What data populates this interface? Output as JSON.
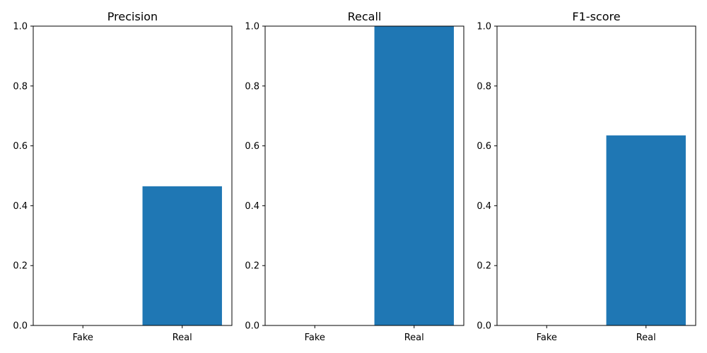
{
  "chart_data": [
    {
      "type": "bar",
      "title": "Precision",
      "categories": [
        "Fake",
        "Real"
      ],
      "values": [
        0.0,
        0.465
      ],
      "ylim": [
        0,
        1
      ],
      "yticks": [
        "0.0",
        "0.2",
        "0.4",
        "0.6",
        "0.8",
        "1.0"
      ],
      "grid": false,
      "color": "#1f77b4"
    },
    {
      "type": "bar",
      "title": "Recall",
      "categories": [
        "Fake",
        "Real"
      ],
      "values": [
        0.0,
        1.0
      ],
      "ylim": [
        0,
        1
      ],
      "yticks": [
        "0.0",
        "0.2",
        "0.4",
        "0.6",
        "0.8",
        "1.0"
      ],
      "grid": false,
      "color": "#1f77b4"
    },
    {
      "type": "bar",
      "title": "F1-score",
      "categories": [
        "Fake",
        "Real"
      ],
      "values": [
        0.0,
        0.635
      ],
      "ylim": [
        0,
        1
      ],
      "yticks": [
        "0.0",
        "0.2",
        "0.4",
        "0.6",
        "0.8",
        "1.0"
      ],
      "grid": false,
      "color": "#1f77b4"
    }
  ]
}
